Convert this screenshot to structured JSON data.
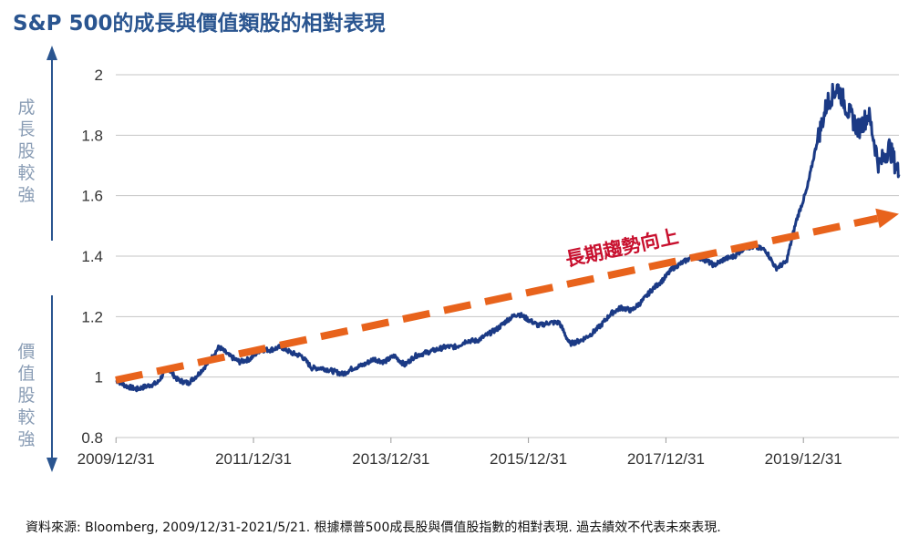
{
  "title": "S&P 500的成長與價值類股的相對表現",
  "source": "資料來源: Bloomberg, 2009/12/31-2021/5/21. 根據標普500成長股與價值股指數的相對表現. 過去績效不代表未來表現.",
  "colors": {
    "line": "#1b3a85",
    "trend": "#e8631c",
    "trend_label": "#c8102e",
    "title": "#2a5590",
    "arrow": "#2a5590"
  },
  "chart_data": {
    "type": "line",
    "xlabel": "",
    "ylabel": "",
    "ylim": [
      0.8,
      2.0
    ],
    "yticks": [
      "0.8",
      "1",
      "1.2",
      "1.4",
      "1.6",
      "1.8",
      "2"
    ],
    "xticks": [
      "2009/12/31",
      "2011/12/31",
      "2013/12/31",
      "2015/12/31",
      "2017/12/31",
      "2019/12/31"
    ],
    "xlim": [
      2009.997,
      2021.39
    ],
    "grid": "horizontal",
    "side_labels": {
      "top": "成長股較強",
      "bottom": "價值股較強"
    },
    "series": [
      {
        "x": [
          2010.0,
          2010.15,
          2010.3,
          2010.45,
          2010.6,
          2010.75,
          2010.9,
          2011.05,
          2011.2,
          2011.35,
          2011.5,
          2011.65,
          2011.8,
          2011.95,
          2012.1,
          2012.25,
          2012.4,
          2012.55,
          2012.7,
          2012.85,
          2013.0,
          2013.15,
          2013.3,
          2013.45,
          2013.6,
          2013.75,
          2013.9,
          2014.05,
          2014.2,
          2014.35,
          2014.5,
          2014.65,
          2014.8,
          2014.95,
          2015.1,
          2015.25,
          2015.4,
          2015.55,
          2015.7,
          2015.85,
          2016.0,
          2016.15,
          2016.3,
          2016.45,
          2016.6,
          2016.75,
          2016.9,
          2017.05,
          2017.2,
          2017.35,
          2017.5,
          2017.65,
          2017.8,
          2017.95,
          2018.1,
          2018.25,
          2018.4,
          2018.55,
          2018.7,
          2018.85,
          2019.0,
          2019.15,
          2019.3,
          2019.45,
          2019.6,
          2019.75,
          2019.9,
          2020.05,
          2020.2,
          2020.35,
          2020.5,
          2020.65,
          2020.8,
          2020.95,
          2021.1,
          2021.25,
          2021.39
        ],
        "y": [
          0.99,
          0.97,
          0.96,
          0.97,
          0.98,
          1.03,
          0.99,
          0.98,
          1.01,
          1.05,
          1.1,
          1.07,
          1.05,
          1.06,
          1.09,
          1.09,
          1.1,
          1.08,
          1.07,
          1.03,
          1.03,
          1.02,
          1.01,
          1.03,
          1.04,
          1.06,
          1.05,
          1.07,
          1.04,
          1.07,
          1.08,
          1.09,
          1.1,
          1.1,
          1.12,
          1.12,
          1.14,
          1.16,
          1.19,
          1.21,
          1.19,
          1.17,
          1.18,
          1.18,
          1.11,
          1.12,
          1.14,
          1.17,
          1.21,
          1.23,
          1.22,
          1.25,
          1.29,
          1.32,
          1.36,
          1.38,
          1.4,
          1.39,
          1.37,
          1.39,
          1.4,
          1.43,
          1.43,
          1.42,
          1.36,
          1.38,
          1.52,
          1.62,
          1.78,
          1.91,
          1.96,
          1.88,
          1.82,
          1.87,
          1.7,
          1.76,
          1.67
        ]
      }
    ],
    "trend": {
      "label": "長期趨勢向上",
      "start": [
        2009.997,
        0.99
      ],
      "end": [
        2021.39,
        1.54
      ]
    }
  }
}
